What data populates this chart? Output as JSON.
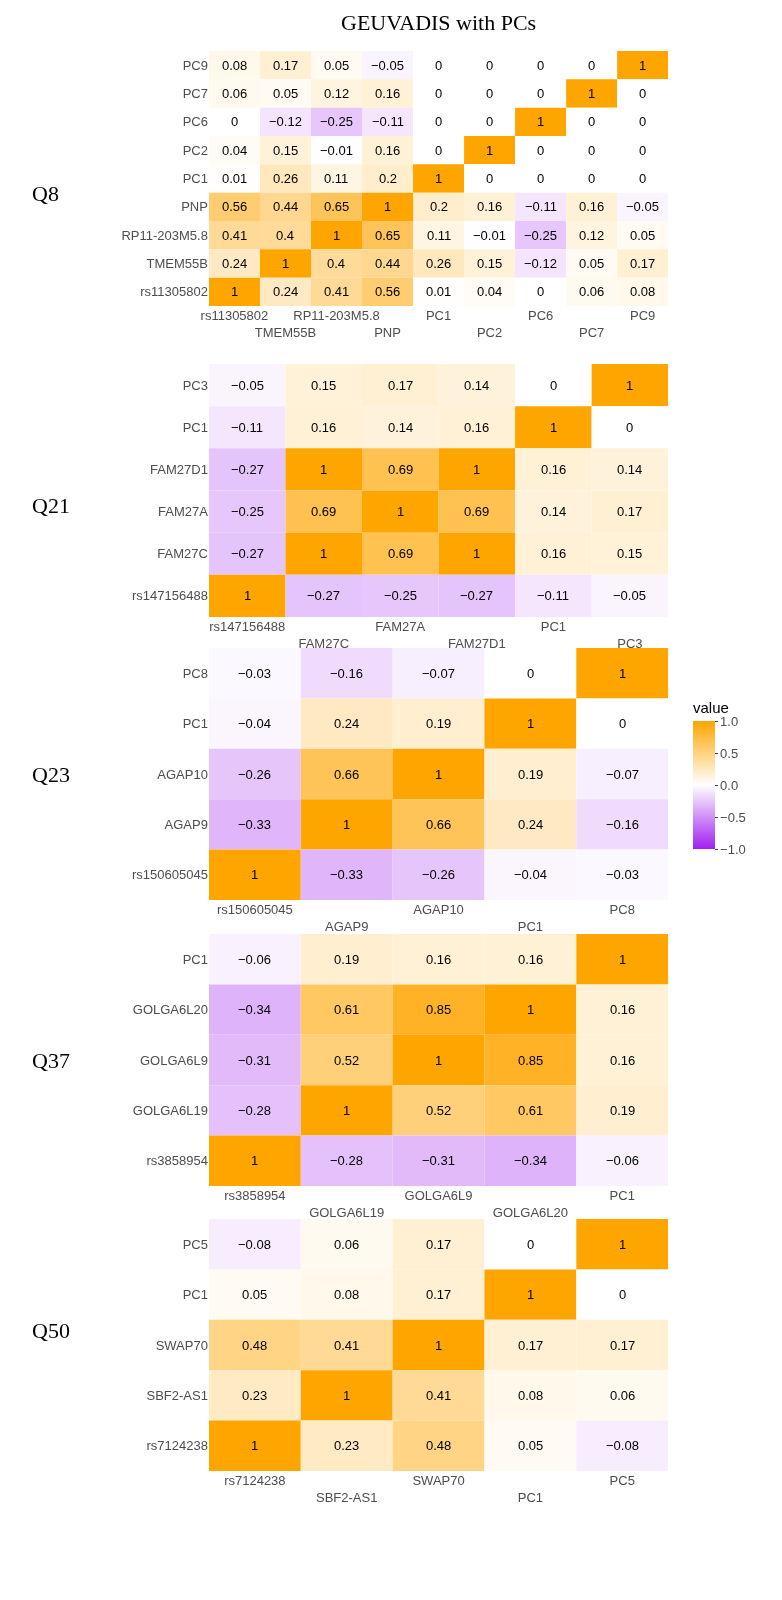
{
  "chart_data": [
    {
      "type": "heatmap",
      "title": "GEUVADIS with PCs",
      "ylabel": "Q8",
      "data_labels": true,
      "categories": [
        "rs11305802",
        "TMEM55B",
        "RP11-203M5.8",
        "PNP",
        "PC1",
        "PC2",
        "PC6",
        "PC7",
        "PC9"
      ],
      "y_categories": [
        "PC9",
        "PC7",
        "PC6",
        "PC2",
        "PC1",
        "PNP",
        "RP11-203M5.8",
        "TMEM55B",
        "rs11305802"
      ],
      "cells": [
        [
          0.08,
          0.17,
          0.05,
          -0.05,
          0,
          0,
          0,
          0,
          1
        ],
        [
          0.06,
          0.05,
          0.12,
          0.16,
          0,
          0,
          0,
          1,
          0
        ],
        [
          0,
          -0.12,
          -0.25,
          -0.11,
          0,
          0,
          1,
          0,
          0
        ],
        [
          0.04,
          0.15,
          -0.01,
          0.16,
          0,
          1,
          0,
          0,
          0
        ],
        [
          0.01,
          0.26,
          0.11,
          0.2,
          1,
          0,
          0,
          0,
          0
        ],
        [
          0.56,
          0.44,
          0.65,
          1,
          0.2,
          0.16,
          -0.11,
          0.16,
          -0.05
        ],
        [
          0.41,
          0.4,
          1,
          0.65,
          0.11,
          -0.01,
          -0.25,
          0.12,
          0.05
        ],
        [
          0.24,
          1,
          0.4,
          0.44,
          0.26,
          0.15,
          -0.12,
          0.05,
          0.17
        ],
        [
          1,
          0.24,
          0.41,
          0.56,
          0.01,
          0.04,
          0,
          0.06,
          0.08
        ]
      ]
    },
    {
      "type": "heatmap",
      "ylabel": "Q21",
      "data_labels": true,
      "categories": [
        "rs147156488",
        "FAM27C",
        "FAM27A",
        "FAM27D1",
        "PC1",
        "PC3"
      ],
      "y_categories": [
        "PC3",
        "PC1",
        "FAM27D1",
        "FAM27A",
        "FAM27C",
        "rs147156488"
      ],
      "cells": [
        [
          -0.05,
          0.15,
          0.17,
          0.14,
          0,
          1
        ],
        [
          -0.11,
          0.16,
          0.14,
          0.16,
          1,
          0
        ],
        [
          -0.27,
          1,
          0.69,
          1,
          0.16,
          0.14
        ],
        [
          -0.25,
          0.69,
          1,
          0.69,
          0.14,
          0.17
        ],
        [
          -0.27,
          1,
          0.69,
          1,
          0.16,
          0.15
        ],
        [
          1,
          -0.27,
          -0.25,
          -0.27,
          -0.11,
          -0.05
        ]
      ]
    },
    {
      "type": "heatmap",
      "ylabel": "Q23",
      "data_labels": true,
      "clabel": "value",
      "clim": [
        -1,
        1
      ],
      "cticks": [
        {
          "value": 1,
          "label": "1.0"
        },
        {
          "value": 0.5,
          "label": "0.5"
        },
        {
          "value": 0,
          "label": "0.0"
        },
        {
          "value": -0.5,
          "label": "−0.5"
        },
        {
          "value": -1,
          "label": "−1.0"
        }
      ],
      "categories": [
        "rs150605045",
        "AGAP9",
        "AGAP10",
        "PC1",
        "PC8"
      ],
      "y_categories": [
        "PC8",
        "PC1",
        "AGAP10",
        "AGAP9",
        "rs150605045"
      ],
      "cells": [
        [
          -0.03,
          -0.16,
          -0.07,
          0,
          1
        ],
        [
          -0.04,
          0.24,
          0.19,
          1,
          0
        ],
        [
          -0.26,
          0.66,
          1,
          0.19,
          -0.07
        ],
        [
          -0.33,
          1,
          0.66,
          0.24,
          -0.16
        ],
        [
          1,
          -0.33,
          -0.26,
          -0.04,
          -0.03
        ]
      ]
    },
    {
      "type": "heatmap",
      "ylabel": "Q37",
      "data_labels": true,
      "categories": [
        "rs3858954",
        "GOLGA6L19",
        "GOLGA6L9",
        "GOLGA6L20",
        "PC1"
      ],
      "y_categories": [
        "PC1",
        "GOLGA6L20",
        "GOLGA6L9",
        "GOLGA6L19",
        "rs3858954"
      ],
      "cells": [
        [
          -0.06,
          0.19,
          0.16,
          0.16,
          1
        ],
        [
          -0.34,
          0.61,
          0.85,
          1,
          0.16
        ],
        [
          -0.31,
          0.52,
          1,
          0.85,
          0.16
        ],
        [
          -0.28,
          1,
          0.52,
          0.61,
          0.19
        ],
        [
          1,
          -0.28,
          -0.31,
          -0.34,
          -0.06
        ]
      ]
    },
    {
      "type": "heatmap",
      "ylabel": "Q50",
      "data_labels": true,
      "categories": [
        "rs7124238",
        "SBF2-AS1",
        "SWAP70",
        "PC1",
        "PC5"
      ],
      "y_categories": [
        "PC5",
        "PC1",
        "SWAP70",
        "SBF2-AS1",
        "rs7124238"
      ],
      "cells": [
        [
          -0.08,
          0.06,
          0.17,
          0,
          1
        ],
        [
          0.05,
          0.08,
          0.17,
          1,
          0
        ],
        [
          0.48,
          0.41,
          1,
          0.17,
          0.17
        ],
        [
          0.23,
          1,
          0.41,
          0.08,
          0.06
        ],
        [
          1,
          0.23,
          0.48,
          0.05,
          -0.08
        ]
      ]
    }
  ]
}
